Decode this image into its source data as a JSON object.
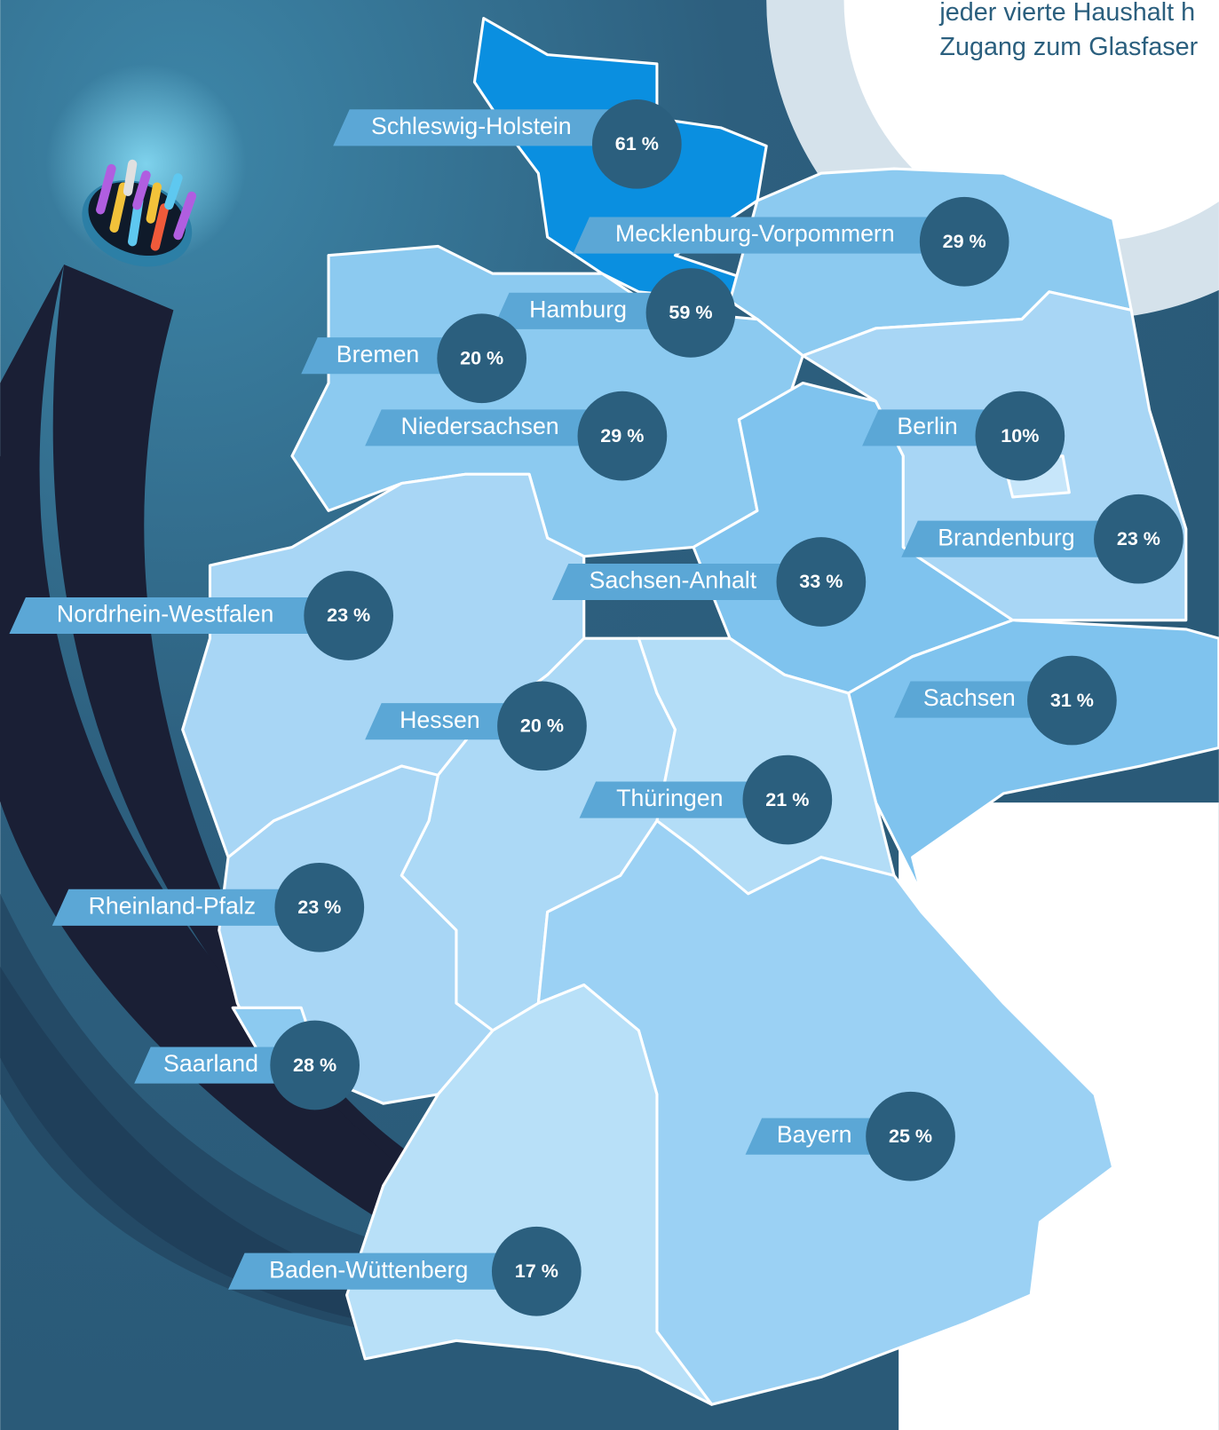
{
  "header": {
    "lines": [
      "jeder vierte Haushalt h",
      "Zugang zum Glasfaser"
    ]
  },
  "regions": [
    {
      "label": "Schleswig-Holstein",
      "value": "61 %"
    },
    {
      "label": "Mecklenburg-Vorpommern",
      "value": "29 %"
    },
    {
      "label": "Hamburg",
      "value": "59  %"
    },
    {
      "label": "Bremen",
      "value": "20  %"
    },
    {
      "label": "Niedersachsen",
      "value": "29 %"
    },
    {
      "label": "Berlin",
      "value": "10%"
    },
    {
      "label": "Brandenburg",
      "value": "23 %"
    },
    {
      "label": "Sachsen-Anhalt",
      "value": "33 %"
    },
    {
      "label": "Nordrhein-Westfalen",
      "value": "23 %"
    },
    {
      "label": "Hessen",
      "value": "20 %"
    },
    {
      "label": "Sachsen",
      "value": "31 %"
    },
    {
      "label": "Thüringen",
      "value": "21 %"
    },
    {
      "label": "Rheinland-Pfalz",
      "value": "23 %"
    },
    {
      "label": "Saarland",
      "value": "28 %"
    },
    {
      "label": "Bayern",
      "value": "25 %"
    },
    {
      "label": "Baden-Wüttenberg",
      "value": "17 %"
    }
  ]
}
